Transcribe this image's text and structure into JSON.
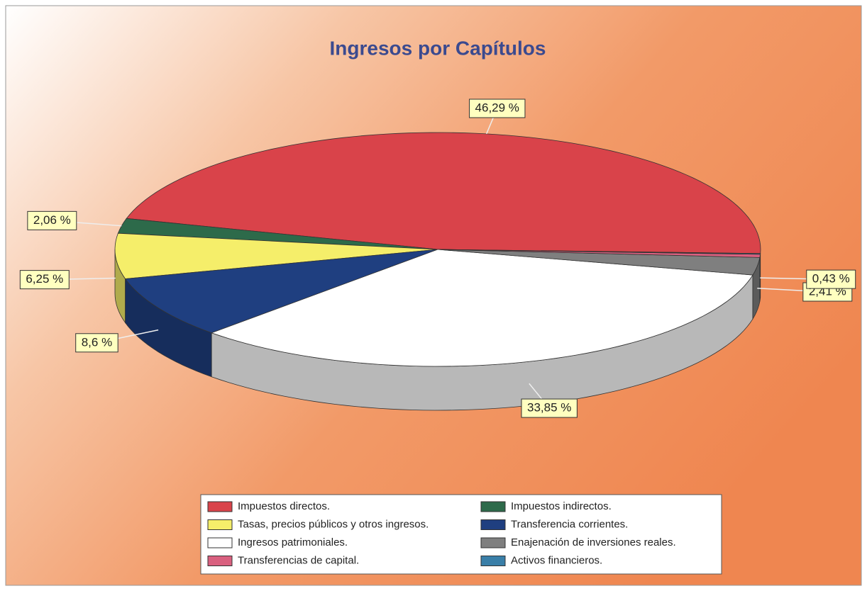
{
  "chart_data": {
    "type": "pie3d",
    "title": "Ingresos por Capítulos",
    "categories": [
      "Impuestos directos.",
      "Impuestos indirectos.",
      "Tasas, precios públicos y otros ingresos.",
      "Transferencia corrientes.",
      "Ingresos patrimoniales.",
      "Enajenación de inversiones reales.",
      "Transferencias de capital.",
      "Activos financieros."
    ],
    "values": [
      46.29,
      2.06,
      6.25,
      8.6,
      33.85,
      2.41,
      0.43,
      0.11
    ],
    "value_labels": [
      "46,29 %",
      "2,06 %",
      "6,25 %",
      "8,6 %",
      "33,85 %",
      "2,41 %",
      "0,43 %",
      null
    ],
    "colors": [
      "#d9434a",
      "#2d6a4a",
      "#f5ee6a",
      "#1f3f80",
      "#ffffff",
      "#7f7f7f",
      "#d9607f",
      "#3a7fa8"
    ],
    "legend": "bottom"
  }
}
